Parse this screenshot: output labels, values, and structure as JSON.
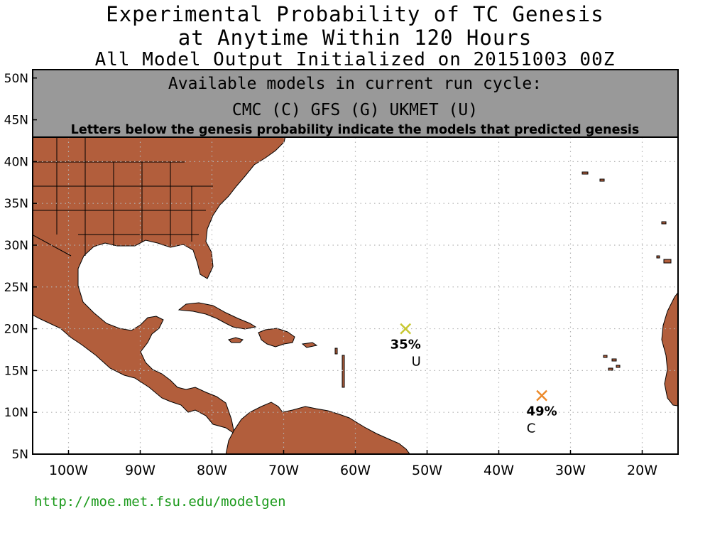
{
  "title": {
    "line1": "Experimental Probability of TC Genesis",
    "line2": "at Anytime Within 120 Hours",
    "line3": "All Model Output Initialized on 20151003 00Z"
  },
  "info_box": {
    "line1": "Available models in current run cycle:",
    "line2": "CMC (C) GFS (G)  UKMET (U)",
    "line3": "Letters below the genesis probability indicate the models that predicted genesis"
  },
  "axes": {
    "lat_labels": [
      "50N",
      "45N",
      "40N",
      "35N",
      "30N",
      "25N",
      "20N",
      "15N",
      "10N",
      "5N"
    ],
    "lon_labels": [
      "100W",
      "90W",
      "80W",
      "70W",
      "60W",
      "50W",
      "40W",
      "30W",
      "20W"
    ],
    "lat_values": [
      50,
      45,
      40,
      35,
      30,
      25,
      20,
      15,
      10,
      5
    ],
    "lon_values": [
      -100,
      -90,
      -80,
      -70,
      -60,
      -50,
      -40,
      -30,
      -20
    ],
    "lon_range": [
      -105,
      -15
    ],
    "lat_range": [
      5,
      51
    ]
  },
  "genesis_points": [
    {
      "lon": -53,
      "lat": 20,
      "probability": "35%",
      "models": "U",
      "color": "#c8c832"
    },
    {
      "lon": -34,
      "lat": 12,
      "probability": "49%",
      "models": "C",
      "color": "#ec8a2a"
    }
  ],
  "colors": {
    "land": "#b25e3c",
    "box_fill": "#999999",
    "grid": "#b4b4b4",
    "url": "#1b9a1b"
  },
  "footer": {
    "url": "http://moe.met.fsu.edu/modelgen"
  }
}
